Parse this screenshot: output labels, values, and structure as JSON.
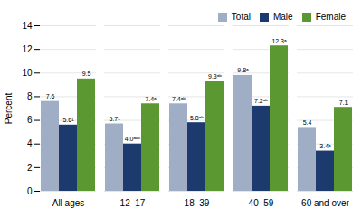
{
  "chart_data": {
    "type": "bar",
    "categories": [
      "All ages",
      "12–17",
      "18–39",
      "40–59",
      "60 and over"
    ],
    "series": [
      {
        "name": "Total",
        "color": "#a0aec5",
        "values": [
          7.6,
          5.7,
          7.4,
          9.8,
          5.4
        ],
        "value_labels": [
          "7.6",
          "5.7¹",
          "7.4ᵃᵇ",
          "9.8ᵃ",
          "5.4"
        ]
      },
      {
        "name": "Male",
        "color": "#1c3a6e",
        "values": [
          5.6,
          4.0,
          5.8,
          7.2,
          3.4
        ],
        "value_labels": [
          "5.6¹",
          "4.0ᵃᵇᶜ",
          "5.8ᵃᵇ",
          "7.2ᵃᵇ",
          "3.4ᵃ"
        ]
      },
      {
        "name": "Female",
        "color": "#5b9832",
        "values": [
          9.5,
          7.4,
          9.3,
          12.3,
          7.1
        ],
        "value_labels": [
          "9.5",
          "7.4ᵃ",
          "9.3ᵃᵇ",
          "12.3ᵃ",
          "7.1"
        ]
      }
    ],
    "ylabel": "Percent",
    "ylim": [
      0,
      14
    ],
    "yticks": [
      0,
      2,
      4,
      6,
      8,
      10,
      12,
      14
    ],
    "grid": true,
    "legend": "upper right",
    "data_labels": true
  }
}
